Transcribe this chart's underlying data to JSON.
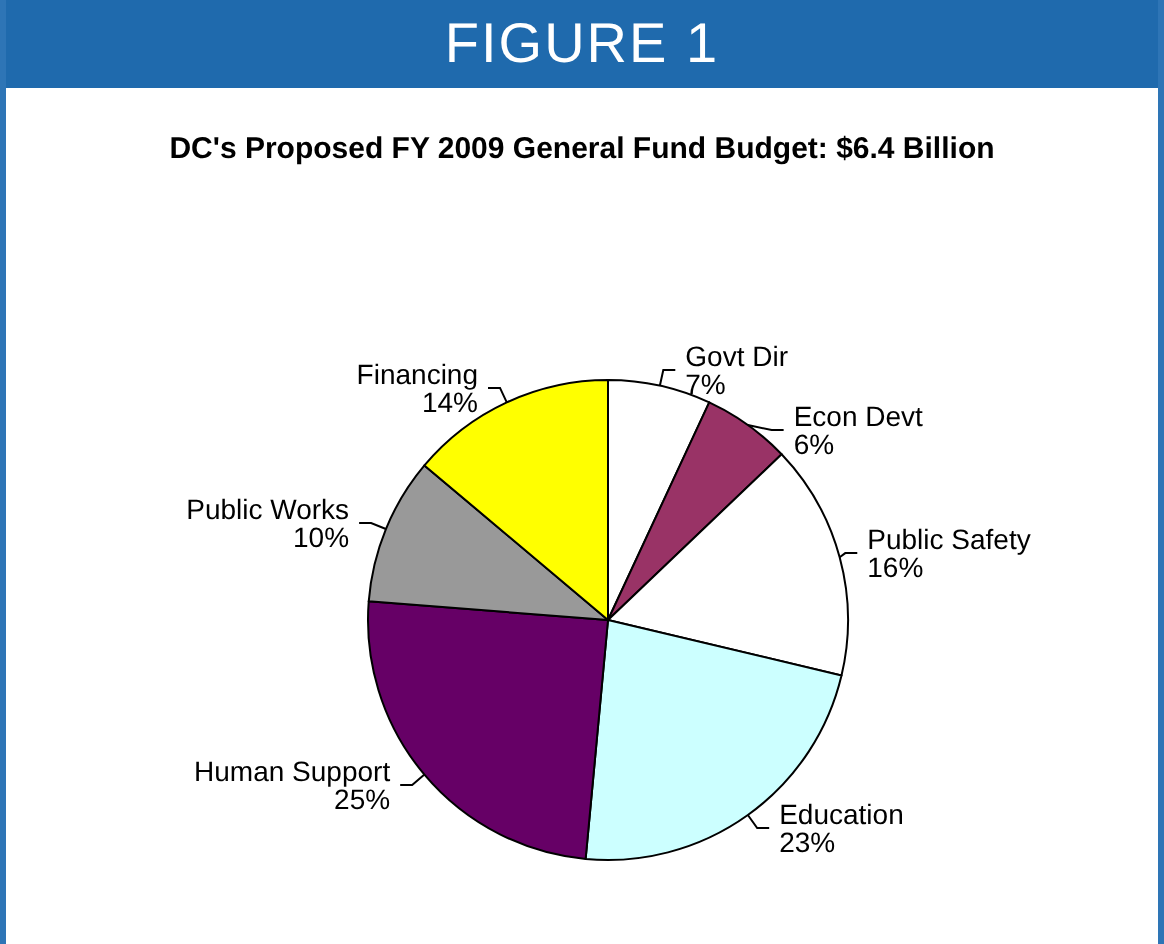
{
  "chart_data": {
    "type": "pie",
    "title": "FIGURE 1",
    "subtitle": "DC's Proposed FY 2009 General Fund Budget: $6.4 Billion",
    "categories": [
      "Govt Dir",
      "Econ Devt",
      "Public Safety",
      "Education",
      "Human Support",
      "Public Works",
      "Financing"
    ],
    "values": [
      7,
      6,
      16,
      23,
      25,
      10,
      14
    ],
    "value_labels": [
      "7%",
      "6%",
      "16%",
      "23%",
      "25%",
      "10%",
      "14%"
    ],
    "colors": [
      "#ffffff",
      "#993366",
      "#ffffff",
      "#ccffff",
      "#660066",
      "#999999",
      "#ffff00"
    ],
    "legend": false
  }
}
